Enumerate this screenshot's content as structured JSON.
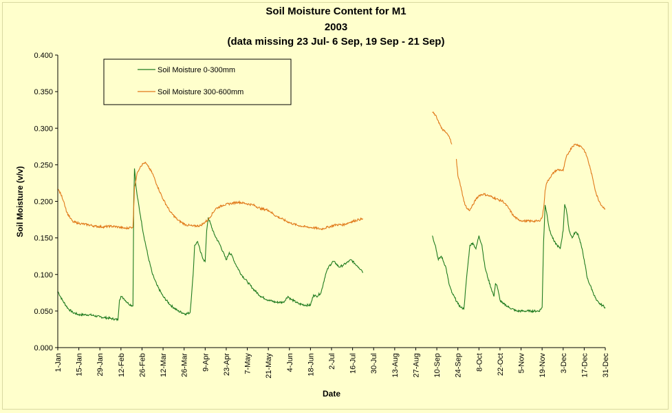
{
  "chart_data": {
    "type": "line",
    "title": "Soil Moisture Content for M1",
    "subtitle": "2003",
    "note": "(data missing 23 Jul- 6 Sep, 19 Sep - 21 Sep)",
    "xlabel": "Date",
    "ylabel": "Soil Moisture (v/v)",
    "ylim": [
      0,
      0.4
    ],
    "y_ticks": [
      "0.000",
      "0.050",
      "0.100",
      "0.150",
      "0.200",
      "0.250",
      "0.300",
      "0.350",
      "0.400"
    ],
    "x_range_days": [
      0,
      364
    ],
    "x_tick_labels": [
      "1-Jan",
      "15-Jan",
      "29-Jan",
      "12-Feb",
      "26-Feb",
      "12-Mar",
      "26-Mar",
      "9-Apr",
      "23-Apr",
      "7-May",
      "21-May",
      "4-Jun",
      "18-Jun",
      "2-Jul",
      "16-Jul",
      "30-Jul",
      "13-Aug",
      "27-Aug",
      "10-Sep",
      "24-Sep",
      "8-Oct",
      "22-Oct",
      "5-Nov",
      "19-Nov",
      "3-Dec",
      "17-Dec",
      "31-Dec"
    ],
    "grid": false,
    "legend_position": "top-left",
    "series": [
      {
        "name": "Soil Moisture 0-300mm",
        "color": "#1e7a1e",
        "x": [
          0,
          3,
          7,
          10,
          14,
          21,
          28,
          35,
          40,
          41,
          42,
          44,
          47,
          50,
          50.5,
          51,
          52,
          53,
          55,
          57,
          60,
          63,
          66,
          70,
          75,
          80,
          85,
          88,
          90,
          91,
          93,
          95,
          97,
          98,
          99,
          100,
          104,
          108,
          112,
          114,
          116,
          118,
          122,
          126,
          130,
          135,
          140,
          145,
          150,
          153,
          155,
          157,
          160,
          165,
          168,
          170,
          172,
          175,
          178,
          180,
          183,
          185,
          187,
          190,
          195,
          199,
          200,
          202,
          203
        ],
        "y": [
          0.077,
          0.065,
          0.053,
          0.048,
          0.045,
          0.045,
          0.042,
          0.04,
          0.038,
          0.065,
          0.07,
          0.067,
          0.06,
          0.057,
          0.2,
          0.245,
          0.22,
          0.205,
          0.18,
          0.155,
          0.125,
          0.1,
          0.085,
          0.07,
          0.058,
          0.05,
          0.046,
          0.048,
          0.1,
          0.14,
          0.145,
          0.13,
          0.12,
          0.118,
          0.16,
          0.178,
          0.155,
          0.14,
          0.12,
          0.13,
          0.125,
          0.115,
          0.1,
          0.09,
          0.08,
          0.07,
          0.065,
          0.062,
          0.062,
          0.07,
          0.066,
          0.064,
          0.06,
          0.058,
          0.058,
          0.072,
          0.07,
          0.075,
          0.1,
          0.11,
          0.118,
          0.115,
          0.11,
          0.113,
          0.12,
          0.112,
          0.11,
          0.106,
          0.103
        ]
      },
      {
        "name": "Soil Moisture 0-300mm",
        "color": "#1e7a1e",
        "x": [
          249,
          251,
          253,
          255,
          258,
          260,
          262,
          264,
          266,
          268,
          270,
          272,
          274,
          276,
          278,
          280,
          282,
          284,
          286,
          288,
          290,
          291,
          292,
          294,
          296,
          298,
          300,
          305,
          310,
          315,
          320,
          322,
          323,
          324,
          325,
          327,
          330,
          332,
          334,
          336,
          337,
          338,
          340,
          342,
          344,
          346,
          348,
          350,
          352,
          354,
          356,
          358,
          360,
          362,
          364
        ],
        "y": [
          0.153,
          0.14,
          0.12,
          0.125,
          0.11,
          0.088,
          0.075,
          0.068,
          0.06,
          0.055,
          0.053,
          0.1,
          0.14,
          0.143,
          0.135,
          0.153,
          0.14,
          0.11,
          0.095,
          0.082,
          0.07,
          0.088,
          0.085,
          0.065,
          0.06,
          0.058,
          0.055,
          0.05,
          0.05,
          0.05,
          0.05,
          0.055,
          0.145,
          0.195,
          0.185,
          0.16,
          0.145,
          0.14,
          0.135,
          0.16,
          0.196,
          0.19,
          0.16,
          0.15,
          0.158,
          0.155,
          0.14,
          0.12,
          0.095,
          0.085,
          0.075,
          0.065,
          0.06,
          0.058,
          0.055
        ]
      },
      {
        "name": "Soil Moisture 300-600mm",
        "color": "#e07818",
        "x": [
          0,
          2,
          4,
          6,
          8,
          10,
          14,
          20,
          25,
          30,
          35,
          40,
          45,
          50,
          50.5,
          51,
          53,
          55,
          57,
          58,
          60,
          63,
          66,
          70,
          75,
          80,
          85,
          90,
          95,
          100,
          105,
          110,
          115,
          120,
          125,
          130,
          135,
          140,
          145,
          150,
          155,
          160,
          165,
          170,
          175,
          180,
          185,
          190,
          195,
          200,
          203
        ],
        "y": [
          0.217,
          0.21,
          0.2,
          0.185,
          0.178,
          0.172,
          0.17,
          0.168,
          0.166,
          0.165,
          0.166,
          0.165,
          0.163,
          0.165,
          0.19,
          0.22,
          0.24,
          0.248,
          0.252,
          0.253,
          0.248,
          0.238,
          0.222,
          0.203,
          0.185,
          0.174,
          0.168,
          0.166,
          0.167,
          0.175,
          0.19,
          0.195,
          0.197,
          0.199,
          0.197,
          0.195,
          0.19,
          0.188,
          0.18,
          0.175,
          0.17,
          0.167,
          0.165,
          0.164,
          0.162,
          0.165,
          0.168,
          0.168,
          0.172,
          0.175,
          0.176
        ]
      },
      {
        "name": "Soil Moisture 300-600mm",
        "color": "#e07818",
        "x": [
          249,
          251,
          253,
          255,
          257,
          259,
          261,
          262
        ],
        "y": [
          0.322,
          0.318,
          0.31,
          0.3,
          0.296,
          0.292,
          0.285,
          0.278
        ]
      },
      {
        "name": "Soil Moisture 300-600mm",
        "color": "#e07818",
        "x": [
          265,
          266,
          268,
          270,
          272,
          274,
          276,
          278,
          280,
          283,
          286,
          290,
          293,
          296,
          300,
          303,
          306,
          310,
          315,
          320,
          322,
          323,
          324,
          325,
          327,
          330,
          332,
          334,
          336,
          338,
          340,
          342,
          344,
          346,
          348,
          350,
          352,
          354,
          356,
          358,
          360,
          362,
          364
        ],
        "y": [
          0.258,
          0.235,
          0.22,
          0.2,
          0.19,
          0.188,
          0.195,
          0.203,
          0.208,
          0.21,
          0.208,
          0.205,
          0.202,
          0.2,
          0.19,
          0.18,
          0.175,
          0.173,
          0.173,
          0.173,
          0.178,
          0.19,
          0.215,
          0.225,
          0.232,
          0.24,
          0.243,
          0.243,
          0.242,
          0.26,
          0.268,
          0.275,
          0.278,
          0.277,
          0.275,
          0.27,
          0.26,
          0.245,
          0.228,
          0.21,
          0.2,
          0.193,
          0.19
        ]
      }
    ],
    "legend": [
      {
        "label": "Soil Moisture 0-300mm",
        "color": "#1e7a1e"
      },
      {
        "label": "Soil Moisture 300-600mm",
        "color": "#e07818"
      }
    ]
  }
}
